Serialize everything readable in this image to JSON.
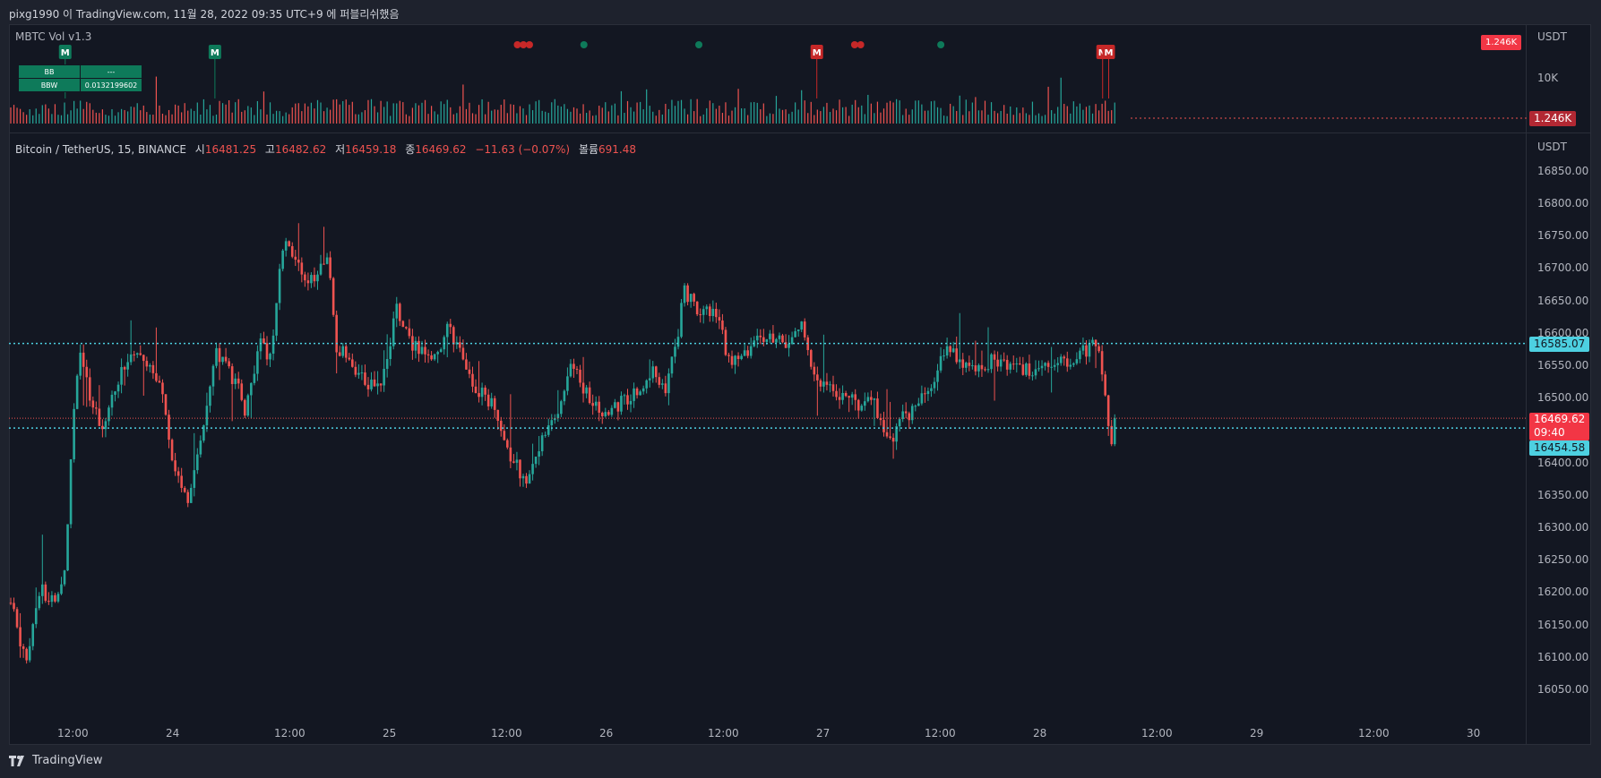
{
  "header": {
    "publish_note": "pixg1990 이 TradingView.com, 11월 28, 2022 09:35 UTC+9 에 퍼블리쉬했음"
  },
  "footer": {
    "brand": "TradingView"
  },
  "colors": {
    "up": "#26a69a",
    "down": "#ef5350",
    "bg": "#131722",
    "level": "#4dd0e1",
    "marker_green": "#0e7a5a",
    "marker_red": "#c62828"
  },
  "indicator": {
    "title": "MBTC Vol v1.3",
    "unit": "USDT",
    "axis_tick": "10K",
    "current_label": "1.246K",
    "top_badge": "1.246K",
    "table": [
      {
        "key": "BB",
        "value": "---"
      },
      {
        "key": "BBW",
        "value": "0.0132199602"
      }
    ],
    "markers": [
      {
        "type": "M",
        "color": "green",
        "x_frac": 0.036
      },
      {
        "type": "M",
        "color": "green",
        "x_frac": 0.135
      },
      {
        "type": "dot",
        "color": "red",
        "x_frac": 0.335
      },
      {
        "type": "dot",
        "color": "red",
        "x_frac": 0.339
      },
      {
        "type": "dot",
        "color": "red",
        "x_frac": 0.343
      },
      {
        "type": "dot",
        "color": "green",
        "x_frac": 0.379
      },
      {
        "type": "dot",
        "color": "green",
        "x_frac": 0.455
      },
      {
        "type": "M",
        "color": "red",
        "x_frac": 0.533
      },
      {
        "type": "dot",
        "color": "red",
        "x_frac": 0.558
      },
      {
        "type": "dot",
        "color": "red",
        "x_frac": 0.562
      },
      {
        "type": "dot",
        "color": "green",
        "x_frac": 0.615
      },
      {
        "type": "M",
        "color": "red",
        "x_frac": 0.722
      },
      {
        "type": "M",
        "color": "red",
        "x_frac": 0.726
      }
    ]
  },
  "main": {
    "symbol": "Bitcoin / TetherUS, 15, BINANCE",
    "ohlc": [
      {
        "key": "시",
        "value": "16481.25"
      },
      {
        "key": "고",
        "value": "16482.62"
      },
      {
        "key": "저",
        "value": "16459.18"
      },
      {
        "key": "종",
        "value": "16469.62"
      }
    ],
    "change": "−11.63 (−0.07%)",
    "volume_key": "볼륨",
    "volume_value": "691.48",
    "unit": "USDT",
    "last_price": "16469.62",
    "countdown": "09:40",
    "level_upper": "16585.07",
    "level_lower": "16454.58"
  },
  "chart_data": {
    "type": "candlestick",
    "y_ticks": [
      "16850.00",
      "16800.00",
      "16750.00",
      "16700.00",
      "16650.00",
      "16600.00",
      "16550.00",
      "16500.00",
      "16450.00",
      "16400.00",
      "16350.00",
      "16300.00",
      "16250.00",
      "16200.00",
      "16150.00",
      "16100.00",
      "16050.00"
    ],
    "ylim": [
      16010,
      16880
    ],
    "x_ticks": [
      "12:00",
      "24",
      "12:00",
      "25",
      "12:00",
      "26",
      "12:00",
      "27",
      "12:00",
      "28",
      "12:00",
      "29",
      "12:00",
      "30"
    ],
    "levels": [
      16585.07,
      16454.58
    ],
    "last_close": 16469.62,
    "path": [
      [
        0.0,
        16185
      ],
      [
        0.01,
        16095
      ],
      [
        0.02,
        16210
      ],
      [
        0.03,
        16175
      ],
      [
        0.036,
        16240
      ],
      [
        0.04,
        16420
      ],
      [
        0.045,
        16580
      ],
      [
        0.055,
        16480
      ],
      [
        0.06,
        16455
      ],
      [
        0.07,
        16520
      ],
      [
        0.08,
        16580
      ],
      [
        0.09,
        16560
      ],
      [
        0.1,
        16510
      ],
      [
        0.105,
        16430
      ],
      [
        0.11,
        16380
      ],
      [
        0.117,
        16340
      ],
      [
        0.125,
        16420
      ],
      [
        0.135,
        16580
      ],
      [
        0.15,
        16520
      ],
      [
        0.155,
        16480
      ],
      [
        0.165,
        16590
      ],
      [
        0.172,
        16560
      ],
      [
        0.18,
        16740
      ],
      [
        0.19,
        16700
      ],
      [
        0.2,
        16680
      ],
      [
        0.21,
        16720
      ],
      [
        0.215,
        16580
      ],
      [
        0.225,
        16560
      ],
      [
        0.235,
        16520
      ],
      [
        0.245,
        16520
      ],
      [
        0.255,
        16640
      ],
      [
        0.265,
        16580
      ],
      [
        0.28,
        16565
      ],
      [
        0.29,
        16610
      ],
      [
        0.3,
        16550
      ],
      [
        0.31,
        16510
      ],
      [
        0.32,
        16490
      ],
      [
        0.33,
        16410
      ],
      [
        0.342,
        16370
      ],
      [
        0.352,
        16450
      ],
      [
        0.362,
        16480
      ],
      [
        0.37,
        16560
      ],
      [
        0.38,
        16510
      ],
      [
        0.392,
        16480
      ],
      [
        0.402,
        16490
      ],
      [
        0.415,
        16515
      ],
      [
        0.425,
        16550
      ],
      [
        0.432,
        16510
      ],
      [
        0.44,
        16580
      ],
      [
        0.445,
        16670
      ],
      [
        0.455,
        16630
      ],
      [
        0.465,
        16640
      ],
      [
        0.475,
        16560
      ],
      [
        0.485,
        16565
      ],
      [
        0.495,
        16600
      ],
      [
        0.505,
        16585
      ],
      [
        0.515,
        16590
      ],
      [
        0.522,
        16620
      ],
      [
        0.53,
        16540
      ],
      [
        0.54,
        16520
      ],
      [
        0.555,
        16500
      ],
      [
        0.562,
        16480
      ],
      [
        0.57,
        16505
      ],
      [
        0.58,
        16430
      ],
      [
        0.59,
        16470
      ],
      [
        0.6,
        16490
      ],
      [
        0.61,
        16530
      ],
      [
        0.62,
        16580
      ],
      [
        0.63,
        16555
      ],
      [
        0.64,
        16545
      ],
      [
        0.65,
        16560
      ],
      [
        0.66,
        16555
      ],
      [
        0.67,
        16545
      ],
      [
        0.68,
        16540
      ],
      [
        0.69,
        16555
      ],
      [
        0.7,
        16560
      ],
      [
        0.71,
        16575
      ],
      [
        0.718,
        16585
      ],
      [
        0.724,
        16510
      ],
      [
        0.727,
        16425
      ],
      [
        0.73,
        16470
      ]
    ]
  }
}
